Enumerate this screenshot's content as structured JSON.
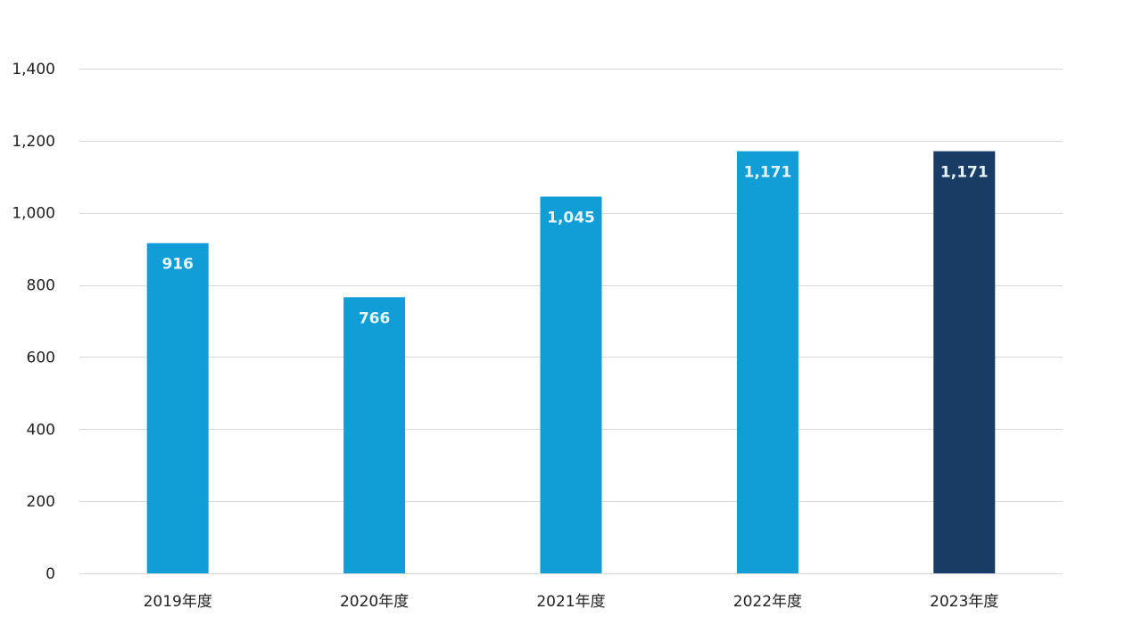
{
  "chart_data": {
    "type": "bar",
    "categories": [
      "2019年度",
      "2020年度",
      "2021年度",
      "2022年度",
      "2023年度"
    ],
    "values": [
      916,
      766,
      1045,
      1171,
      1171
    ],
    "value_labels": [
      "916",
      "766",
      "1,045",
      "1,171",
      "1,171"
    ],
    "ylim": [
      0,
      1400
    ],
    "y_ticks": [
      0,
      200,
      400,
      600,
      800,
      1000,
      1200,
      1400
    ],
    "y_tick_labels": [
      "0",
      "200",
      "400",
      "600",
      "800",
      "1,000",
      "1,200",
      "1,400"
    ],
    "grid": true,
    "colors": {
      "bar": "#119ed6",
      "highlight_bar": "#183c63",
      "gridline": "#d9d9d9",
      "data_label": "#e8f3fa"
    },
    "highlight_index": 4
  }
}
